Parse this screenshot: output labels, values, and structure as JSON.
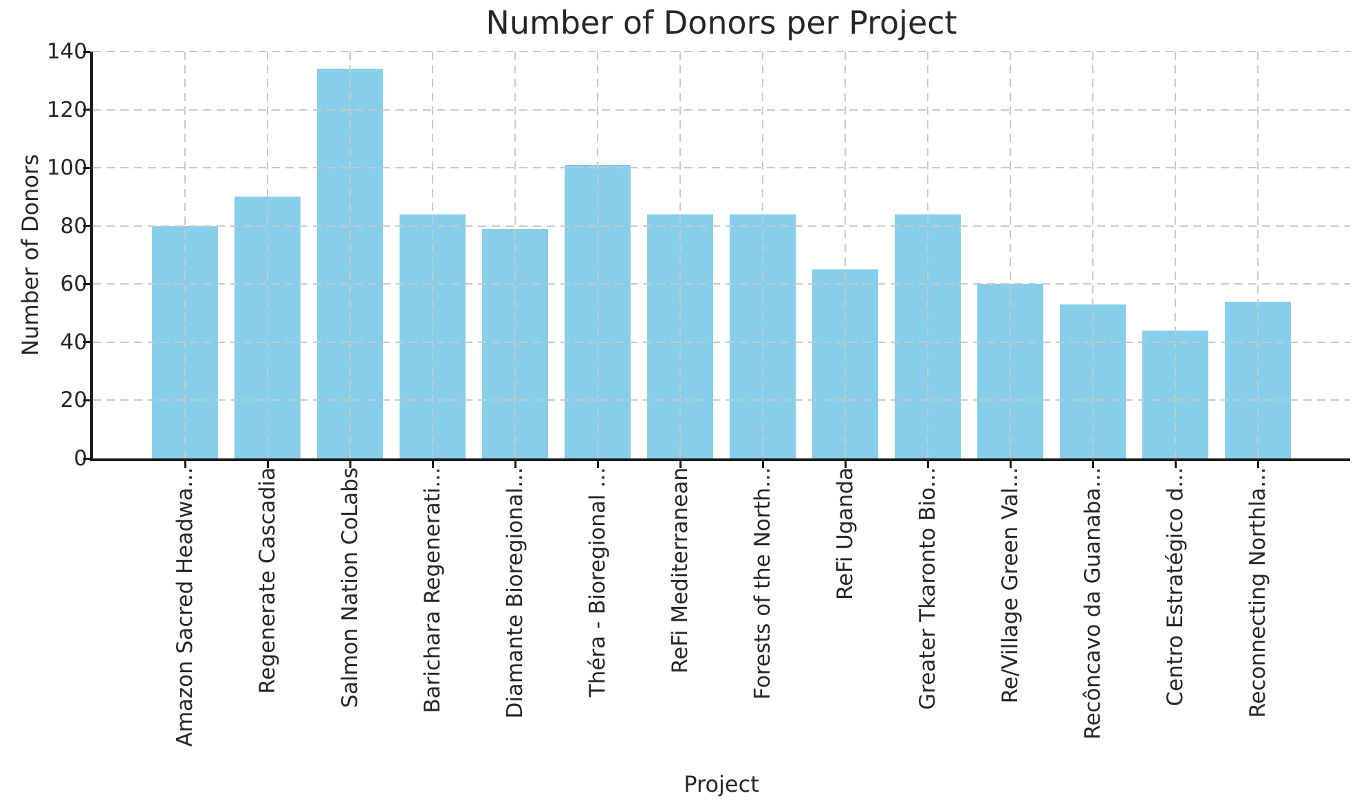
{
  "chart_data": {
    "type": "bar",
    "title": "Number of Donors per Project",
    "xlabel": "Project",
    "ylabel": "Number of Donors",
    "categories": [
      "Amazon Sacred Headwa...",
      "Regenerate Cascadia",
      "Salmon Nation CoLabs",
      "Barichara Regenerati...",
      "Diamante Bioregional...",
      "Théra - Bioregional ...",
      "ReFi Mediterranean",
      "Forests of the North...",
      "ReFi Uganda",
      "Greater Tkaronto Bio...",
      "Re/Village Green Val...",
      "Recôncavo da Guanaba...",
      "Centro Estratégico d...",
      "Reconnecting Northla..."
    ],
    "values": [
      80,
      90,
      134,
      84,
      79,
      101,
      84,
      84,
      65,
      84,
      60,
      53,
      44,
      54
    ],
    "ylim": [
      0,
      140
    ],
    "yticks": [
      0,
      20,
      40,
      60,
      80,
      100,
      120,
      140
    ],
    "grid": true,
    "grid_style": "dashed",
    "legend_position": "none",
    "bar_color": "#87CEEB"
  },
  "colors": {
    "bar": "#87CEEB",
    "grid": "#c9c9c9",
    "spine": "#1a1a1a",
    "text": "#262626",
    "background": "#ffffff"
  }
}
